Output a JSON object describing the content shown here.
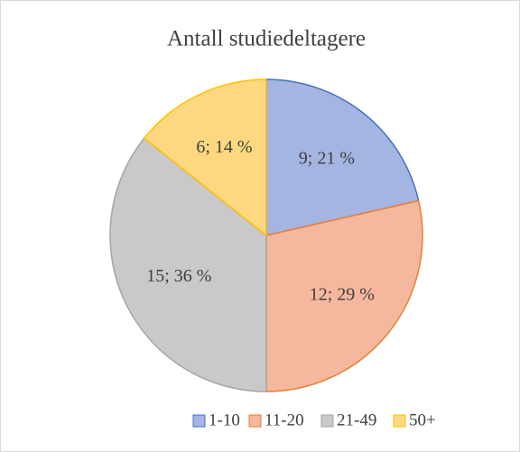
{
  "chart_data": {
    "type": "pie",
    "title": "Antall studiedeltagere",
    "categories": [
      "1-10",
      "11-20",
      "21-49",
      "50+"
    ],
    "values": [
      9,
      12,
      15,
      6
    ],
    "value_labels": [
      "9; 21 %",
      "12; 29 %",
      "15; 36 %",
      "6; 14 %"
    ],
    "colors": [
      "#a5b5e2",
      "#f5b89e",
      "#c9c9c9",
      "#fed880"
    ],
    "edge_colors": [
      "#4472c4",
      "#ed7d31",
      "#a5a5a5",
      "#ffc000"
    ],
    "legend": "bottom"
  }
}
